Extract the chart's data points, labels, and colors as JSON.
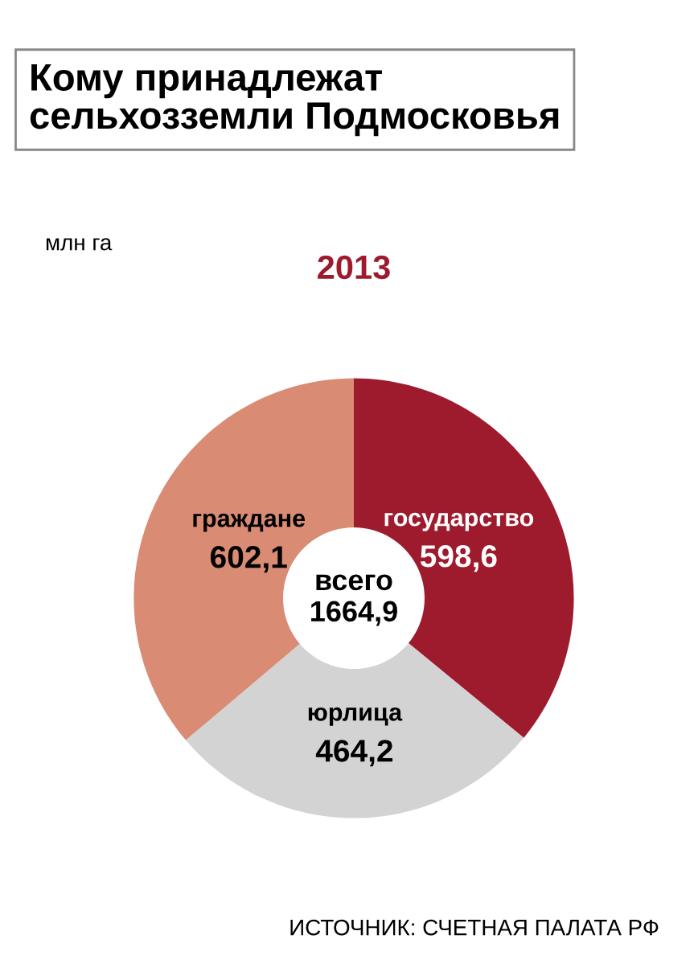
{
  "chart_data": {
    "type": "donut",
    "title": "Кому принадлежат\nсельхозземли Подмосковья",
    "subtitle": "2013",
    "categories": [
      "государство",
      "юрлица",
      "граждане"
    ],
    "values": [
      598.6,
      464.2,
      602.1
    ],
    "value_labels": [
      "598,6",
      "464,2",
      "602,1"
    ],
    "colors": [
      "#9e1b2e",
      "#d3d3d3",
      "#d98b74"
    ],
    "annotations": [
      "млн га",
      "всего\n1664,9",
      "ИСТОЧНИК: СЧЕТНАЯ ПАЛАТА РФ"
    ]
  }
}
